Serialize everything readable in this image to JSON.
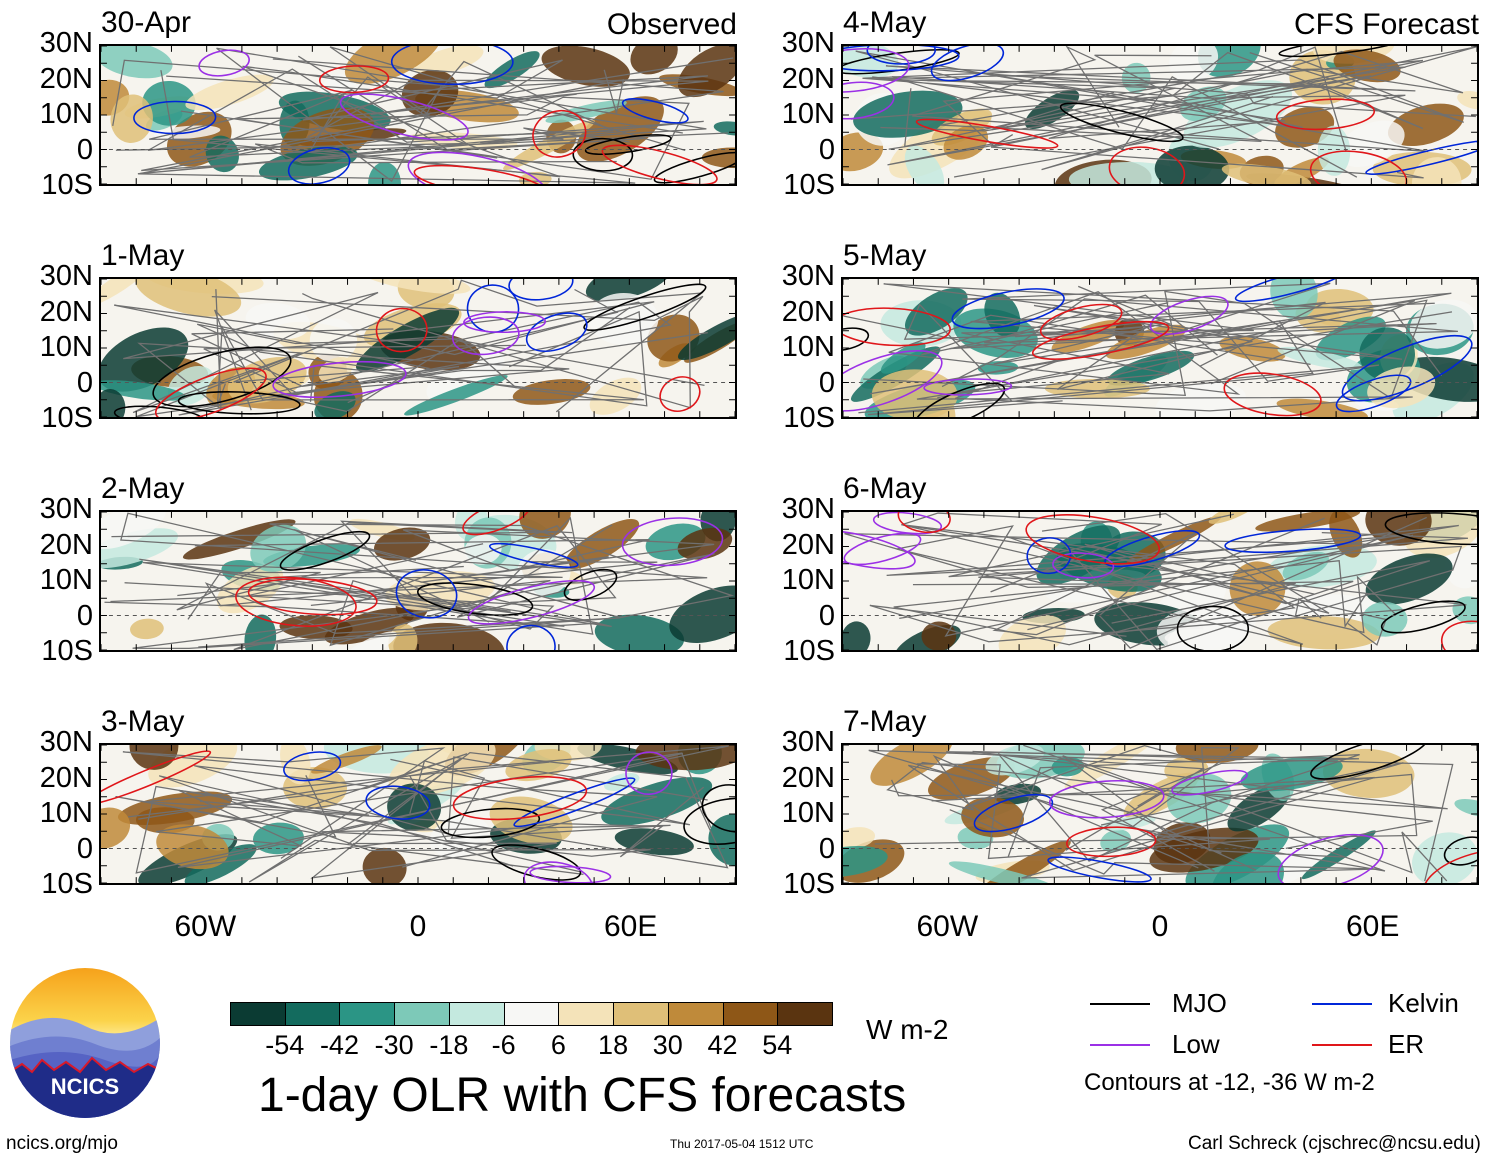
{
  "chart_data": {
    "type": "heatmap",
    "title": "1-day OLR with CFS forecasts",
    "variable": "OLR anomaly",
    "units": "W m-2",
    "ylim": [
      -10,
      30
    ],
    "xlim": [
      -90,
      90
    ],
    "lat_tick_labels": [
      "30N",
      "20N",
      "10N",
      "0",
      "10S"
    ],
    "lat_tick_values": [
      30,
      20,
      10,
      0,
      -10
    ],
    "lon_tick_labels": [
      "60W",
      "0",
      "60E"
    ],
    "lon_tick_values": [
      -60,
      0,
      60
    ],
    "columns": [
      {
        "heading": "Observed",
        "dates": [
          "30-Apr",
          "1-May",
          "2-May",
          "3-May"
        ]
      },
      {
        "heading": "CFS Forecast",
        "dates": [
          "4-May",
          "5-May",
          "6-May",
          "7-May"
        ]
      }
    ],
    "colorbar": {
      "tick_labels": [
        "-54",
        "-42",
        "-30",
        "-18",
        "-6",
        "6",
        "18",
        "30",
        "42",
        "54"
      ],
      "colors": [
        "#0b3b33",
        "#136b5e",
        "#2b9585",
        "#7dc9b8",
        "#c4e9df",
        "#f7f7f5",
        "#f4e3b9",
        "#dfbf78",
        "#bf8a3a",
        "#8e5717",
        "#5a3410"
      ]
    },
    "legend": [
      {
        "label": "MJO",
        "color": "#000000"
      },
      {
        "label": "Kelvin",
        "color": "#0026d9"
      },
      {
        "label": "Low",
        "color": "#9b30e6"
      },
      {
        "label": "ER",
        "color": "#e0161a"
      }
    ],
    "contour_note": "Contours at -12, -36 W m-2"
  },
  "footer": {
    "logo_text": "NCICS",
    "site": "ncics.org/mjo",
    "timestamp": "Thu 2017-05-04 1512 UTC",
    "credit": "Carl Schreck (cjschrec@ncsu.edu)"
  }
}
